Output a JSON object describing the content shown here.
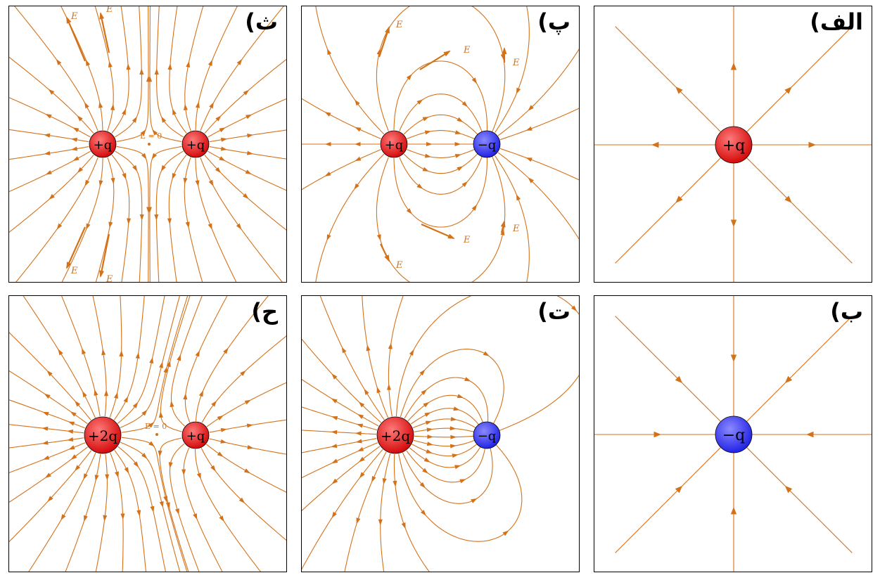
{
  "colors": {
    "line": "#d4721a",
    "positive": "#e8191e",
    "negative": "#3b3bff"
  },
  "panels": [
    {
      "id": "alef",
      "label": "الف)",
      "charges": [
        {
          "text": "+q",
          "sign": "positive"
        }
      ]
    },
    {
      "id": "be",
      "label": "ب)",
      "charges": [
        {
          "text": "−q",
          "sign": "negative"
        }
      ]
    },
    {
      "id": "pe",
      "label": "پ)",
      "charges": [
        {
          "text": "+q",
          "sign": "positive"
        },
        {
          "text": "−q",
          "sign": "negative"
        }
      ],
      "e_label": "E"
    },
    {
      "id": "te",
      "label": "ت)",
      "charges": [
        {
          "text": "+2q",
          "sign": "positive"
        },
        {
          "text": "−q",
          "sign": "negative"
        }
      ]
    },
    {
      "id": "se",
      "label": "ث)",
      "charges": [
        {
          "text": "+q",
          "sign": "positive"
        },
        {
          "text": "+q",
          "sign": "positive"
        }
      ],
      "e_label": "E",
      "zero_label": "E = 0"
    },
    {
      "id": "he",
      "label": "ح)",
      "charges": [
        {
          "text": "+2q",
          "sign": "positive"
        },
        {
          "text": "+q",
          "sign": "positive"
        }
      ],
      "zero_label": "E = 0"
    }
  ]
}
